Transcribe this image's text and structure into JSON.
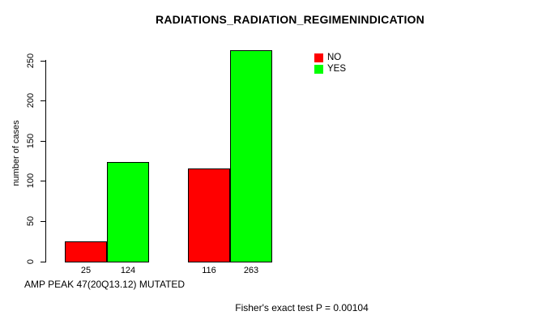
{
  "chart_data": {
    "type": "bar",
    "title": "RADIATIONS_RADIATION_REGIMENINDICATION",
    "ylabel": "number of cases",
    "xlabel": "AMP PEAK 47(20Q13.12) MUTATED",
    "annotation": "Fisher's exact test P = 0.00104",
    "ylim": [
      0,
      250
    ],
    "yticks": [
      0,
      50,
      100,
      150,
      200,
      250
    ],
    "grid": false,
    "legend_position": "top-right",
    "series": [
      {
        "name": "NO",
        "color": "#ff0000",
        "values": [
          25,
          116
        ]
      },
      {
        "name": "YES",
        "color": "#00ff00",
        "values": [
          124,
          263
        ]
      }
    ],
    "groups": [
      {
        "bars": [
          {
            "series": "NO",
            "value": 25,
            "label": "25"
          },
          {
            "series": "YES",
            "value": 124,
            "label": "124"
          }
        ]
      },
      {
        "bars": [
          {
            "series": "NO",
            "value": 116,
            "label": "116"
          },
          {
            "series": "YES",
            "value": 263,
            "label": "263"
          }
        ]
      }
    ],
    "legend": [
      {
        "label": "NO",
        "color": "#ff0000"
      },
      {
        "label": "YES",
        "color": "#00ff00"
      }
    ]
  },
  "colors": {
    "background": "#ffffff",
    "axis": "#000000",
    "text": "#000000"
  }
}
